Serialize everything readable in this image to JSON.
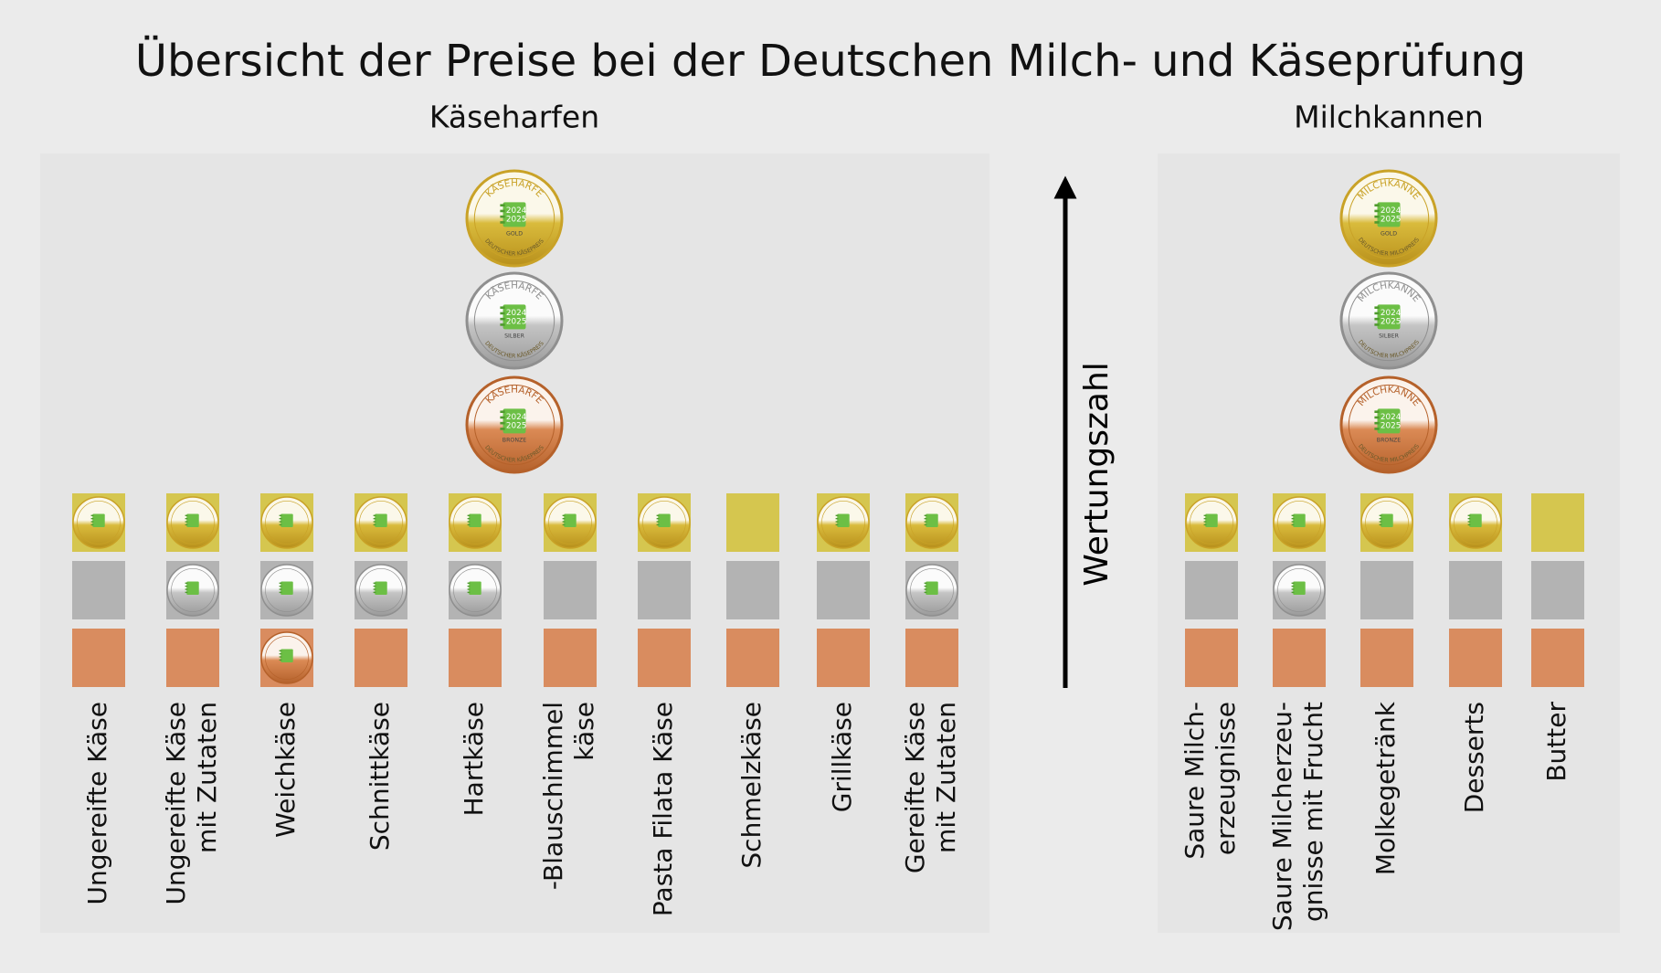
{
  "title": "Übersicht der Preise bei der Deutschen Milch- und Käseprüfung",
  "axis_label": "Wertungszahl",
  "panels": [
    {
      "heading": "Käseharfen",
      "medal": {
        "name": "KÄSEHARFE",
        "years": [
          "2024",
          "2025"
        ],
        "levels": [
          "GOLD",
          "SILBER",
          "BRONZE"
        ],
        "footer": "DEUTSCHER KÄSEPREIS"
      },
      "categories": [
        {
          "label": [
            "Ungereifte Käse"
          ],
          "medals": [
            true,
            false,
            false
          ]
        },
        {
          "label": [
            "Ungereifte Käse",
            "mit Zutaten"
          ],
          "medals": [
            true,
            true,
            false
          ]
        },
        {
          "label": [
            "Weichkäse"
          ],
          "medals": [
            true,
            true,
            true
          ]
        },
        {
          "label": [
            "Schnittkäse"
          ],
          "medals": [
            true,
            true,
            false
          ]
        },
        {
          "label": [
            "Hartkäse"
          ],
          "medals": [
            true,
            true,
            false
          ]
        },
        {
          "label": [
            "-Blauschimmel",
            "käse"
          ],
          "medals": [
            true,
            false,
            false
          ]
        },
        {
          "label": [
            "Pasta Filata Käse"
          ],
          "medals": [
            true,
            false,
            false
          ]
        },
        {
          "label": [
            "Schmelzkäse"
          ],
          "medals": [
            false,
            false,
            false
          ]
        },
        {
          "label": [
            "Grillkäse"
          ],
          "medals": [
            true,
            false,
            false
          ]
        },
        {
          "label": [
            "Gereifte Käse",
            "mit Zutaten"
          ],
          "medals": [
            true,
            true,
            false
          ]
        }
      ]
    },
    {
      "heading": "Milchkannen",
      "medal": {
        "name": "MILCHKANNE",
        "years": [
          "2024",
          "2025"
        ],
        "levels": [
          "GOLD",
          "SILBER",
          "BRONZE"
        ],
        "footer": "DEUTSCHER MILCHPREIS"
      },
      "categories": [
        {
          "label": [
            "Saure Milch-",
            "erzeugnisse"
          ],
          "medals": [
            true,
            false,
            false
          ]
        },
        {
          "label": [
            "Saure Milcherzeu-",
            "gnisse mit Frucht"
          ],
          "medals": [
            true,
            true,
            false
          ]
        },
        {
          "label": [
            "Molkegetränk"
          ],
          "medals": [
            true,
            false,
            false
          ]
        },
        {
          "label": [
            "Desserts"
          ],
          "medals": [
            true,
            false,
            false
          ]
        },
        {
          "label": [
            "Butter"
          ],
          "medals": [
            false,
            false,
            false
          ]
        }
      ]
    }
  ]
}
